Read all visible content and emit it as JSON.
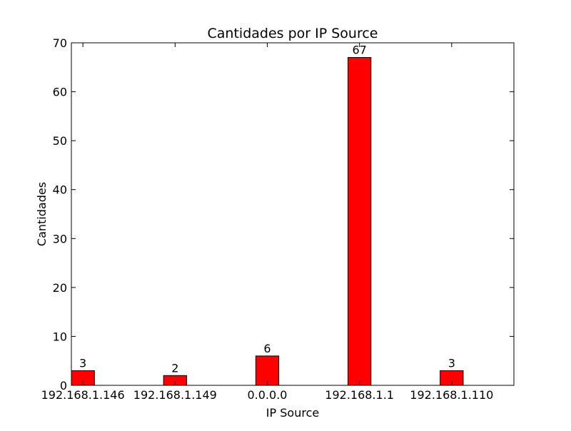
{
  "chart_data": {
    "type": "bar",
    "title": "Cantidades por IP Source",
    "xlabel": "IP Source",
    "ylabel": "Cantidades",
    "categories": [
      "192.168.1.146",
      "192.168.1.149",
      "0.0.0.0",
      "192.168.1.1",
      "192.168.1.110"
    ],
    "values": [
      3,
      2,
      6,
      67,
      3
    ],
    "data_labels": [
      "3",
      "2",
      "6",
      "67",
      "3"
    ],
    "ylim": [
      0,
      70
    ],
    "yticks": [
      0,
      10,
      20,
      30,
      40,
      50,
      60,
      70
    ],
    "ytick_labels": [
      "0",
      "10",
      "20",
      "30",
      "40",
      "50",
      "60",
      "70"
    ],
    "bar_color": "#ff0000",
    "edge_color": "#000000",
    "grid": false,
    "legend": "none"
  }
}
